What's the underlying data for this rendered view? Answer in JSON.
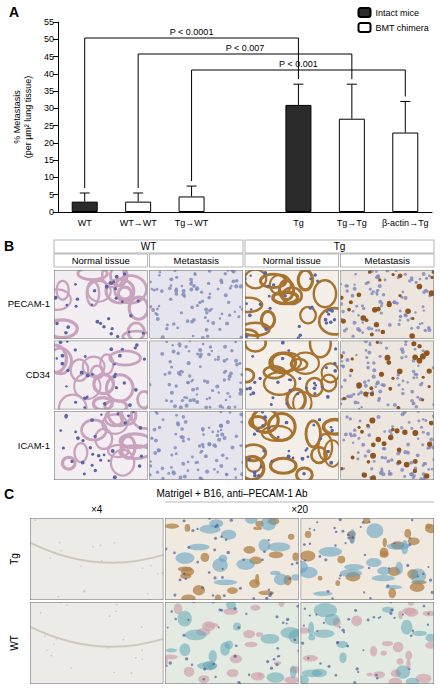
{
  "chart_data": {
    "type": "bar",
    "panel_label": "A",
    "y_label": "% Metastasis\n(per µm² lung tissue)",
    "categories": [
      "WT",
      "WT→WT",
      "Tg→WT",
      null,
      "Tg",
      "Tg→Tg",
      "β-actin→Tg"
    ],
    "series": [
      {
        "name": "Intact mice",
        "color": "#2b2b2b",
        "values": [
          3,
          null,
          null,
          null,
          31,
          null,
          null
        ],
        "errors": [
          2.5,
          null,
          null,
          null,
          6,
          null,
          null
        ]
      },
      {
        "name": "BMT chimera",
        "color": "#ffffff",
        "values": [
          null,
          3,
          4.5,
          null,
          null,
          27,
          23
        ],
        "errors": [
          null,
          2.5,
          3,
          null,
          null,
          10,
          9
        ]
      }
    ],
    "ylim": [
      0,
      55
    ],
    "yticks": [
      0,
      5,
      10,
      15,
      20,
      25,
      30,
      35,
      40,
      45,
      50,
      55
    ],
    "grid": false,
    "legend": "top-right",
    "annotations": [
      {
        "text": "P < 0.0001",
        "from": "WT",
        "to": "Tg"
      },
      {
        "text": "P < 0.007",
        "from": "WT→WT",
        "to": "Tg→Tg"
      },
      {
        "text": "P < 0.001",
        "from": "Tg→WT",
        "to": "β-actin→Tg"
      }
    ]
  },
  "panel_B": {
    "label": "B",
    "groups": [
      {
        "title": "WT",
        "columns": [
          "Normal tissue",
          "Metastasis"
        ]
      },
      {
        "title": "Tg",
        "columns": [
          "Normal tissue",
          "Metastasis"
        ]
      }
    ],
    "rows": [
      "PECAM-1",
      "CD34",
      "ICAM-1"
    ]
  },
  "panel_C": {
    "label": "C",
    "title": "Matrigel + B16, anti–PECAM-1 Ab",
    "magnifications": [
      "×4",
      "×20"
    ],
    "rows": [
      "Tg",
      "WT"
    ]
  }
}
